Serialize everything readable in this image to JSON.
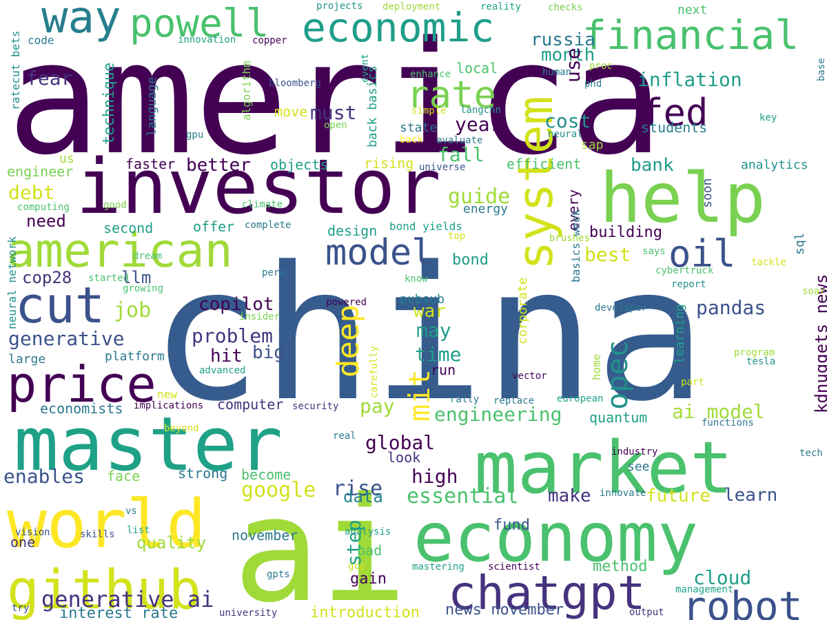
{
  "colors": {
    "background": "#ffffff",
    "dark_purple": "#440154",
    "purple": "#46337e",
    "indigo": "#3b528b",
    "steel_blue": "#365c8d",
    "teal_blue": "#277f8e",
    "teal": "#1fa187",
    "green": "#4ac16d",
    "lime": "#a0da39",
    "yellow": "#fde725"
  },
  "words": [
    {
      "id": "america",
      "text": "america",
      "color": "#440154"
    },
    {
      "id": "china",
      "text": "china",
      "color": "#365c8d"
    },
    {
      "id": "ai",
      "text": "ai",
      "color": "#a0da39"
    },
    {
      "id": "investor",
      "text": "investor",
      "color": "#440154"
    },
    {
      "id": "master",
      "text": "master",
      "color": "#1fa187"
    },
    {
      "id": "market",
      "text": "market",
      "color": "#4ac16d"
    },
    {
      "id": "economy",
      "text": "economy",
      "color": "#4ac16d"
    },
    {
      "id": "world",
      "text": "world",
      "color": "#fde725"
    },
    {
      "id": "help",
      "text": "help",
      "color": "#7ad151"
    },
    {
      "id": "github",
      "text": "github",
      "color": "#d2e21b"
    },
    {
      "id": "american",
      "text": "american",
      "color": "#a0da39"
    },
    {
      "id": "chatgpt",
      "text": "chatgpt",
      "color": "#46337e"
    },
    {
      "id": "price",
      "text": "price",
      "color": "#440154"
    },
    {
      "id": "cut",
      "text": "cut",
      "color": "#3b528b"
    },
    {
      "id": "system",
      "text": "system",
      "color": "#d2e21b"
    },
    {
      "id": "robot",
      "text": "robot",
      "color": "#3b528b"
    },
    {
      "id": "financial",
      "text": "financial",
      "color": "#4ac16d"
    },
    {
      "id": "economic",
      "text": "economic",
      "color": "#1f9e89"
    },
    {
      "id": "way",
      "text": "way",
      "color": "#277f8e"
    },
    {
      "id": "powell",
      "text": "powell",
      "color": "#4ac16d"
    },
    {
      "id": "rate",
      "text": "rate",
      "color": "#7ad151"
    },
    {
      "id": "fed",
      "text": "fed",
      "color": "#440154"
    },
    {
      "id": "model",
      "text": "model",
      "color": "#3b528b"
    },
    {
      "id": "oil",
      "text": "oil",
      "color": "#3b528b"
    },
    {
      "id": "deep",
      "text": "deep",
      "color": "#fde725"
    },
    {
      "id": "mit",
      "text": "mit",
      "color": "#fde725"
    },
    {
      "id": "opec",
      "text": "opec",
      "color": "#21918c"
    },
    {
      "id": "generative-ai",
      "text": "generative ai",
      "color": "#46337e"
    },
    {
      "id": "inflation",
      "text": "inflation",
      "color": "#1f9e89"
    },
    {
      "id": "russia",
      "text": "russia",
      "color": "#2a788e"
    },
    {
      "id": "month",
      "text": "month",
      "color": "#1f9e89"
    },
    {
      "id": "cost",
      "text": "cost",
      "color": "#21918c"
    },
    {
      "id": "use",
      "text": "use",
      "color": "#440154"
    },
    {
      "id": "students",
      "text": "students",
      "color": "#277f8e"
    },
    {
      "id": "year",
      "text": "year",
      "color": "#440154"
    },
    {
      "id": "must",
      "text": "must",
      "color": "#46337e"
    },
    {
      "id": "fear",
      "text": "fear",
      "color": "#46337e"
    },
    {
      "id": "technique",
      "text": "technique",
      "color": "#1fa187"
    },
    {
      "id": "language",
      "text": "language",
      "color": "#2a788e"
    },
    {
      "id": "better",
      "text": "better",
      "color": "#440154"
    },
    {
      "id": "bank",
      "text": "bank",
      "color": "#1f9e89"
    },
    {
      "id": "efficient",
      "text": "efficient",
      "color": "#4ac16d"
    },
    {
      "id": "analytics",
      "text": "analytics",
      "color": "#21918c"
    },
    {
      "id": "debt",
      "text": "debt",
      "color": "#d2e21b"
    },
    {
      "id": "need",
      "text": "need",
      "color": "#440154"
    },
    {
      "id": "cop28",
      "text": "cop28",
      "color": "#46337e"
    },
    {
      "id": "llm",
      "text": "llm",
      "color": "#3b528b"
    },
    {
      "id": "job",
      "text": "job",
      "color": "#a0da39"
    },
    {
      "id": "copilot",
      "text": "copilot",
      "color": "#440154"
    },
    {
      "id": "problem",
      "text": "problem",
      "color": "#46337e"
    },
    {
      "id": "hit",
      "text": "hit",
      "color": "#440154"
    },
    {
      "id": "big",
      "text": "big",
      "color": "#3b528b"
    },
    {
      "id": "generative",
      "text": "generative",
      "color": "#3b528b"
    },
    {
      "id": "large",
      "text": "large",
      "color": "#2a788e"
    },
    {
      "id": "platform",
      "text": "platform",
      "color": "#2a788e"
    },
    {
      "id": "pandas",
      "text": "pandas",
      "color": "#3b528b"
    },
    {
      "id": "kdnuggets-news",
      "text": "kdnuggets news",
      "color": "#440154"
    },
    {
      "id": "best",
      "text": "best",
      "color": "#d2e21b"
    },
    {
      "id": "bond",
      "text": "bond",
      "color": "#1f9e89"
    },
    {
      "id": "guide",
      "text": "guide",
      "color": "#a0da39"
    },
    {
      "id": "energy",
      "text": "energy",
      "color": "#2a788e"
    },
    {
      "id": "fall",
      "text": "fall",
      "color": "#4ac16d"
    },
    {
      "id": "war",
      "text": "war",
      "color": "#d2e21b"
    },
    {
      "id": "may",
      "text": "may",
      "color": "#1f9e89"
    },
    {
      "id": "time",
      "text": "time",
      "color": "#1f9e89"
    },
    {
      "id": "pay",
      "text": "pay",
      "color": "#a0da39"
    },
    {
      "id": "engineering",
      "text": "engineering",
      "color": "#4ac16d"
    },
    {
      "id": "ai-model",
      "text": "ai model",
      "color": "#a0da39"
    },
    {
      "id": "global",
      "text": "global",
      "color": "#440154"
    },
    {
      "id": "rise",
      "text": "rise",
      "color": "#3b528b"
    },
    {
      "id": "high",
      "text": "high",
      "color": "#440154"
    },
    {
      "id": "google",
      "text": "google",
      "color": "#d2e21b"
    },
    {
      "id": "data",
      "text": "data",
      "color": "#277f8e"
    },
    {
      "id": "essential",
      "text": "essential",
      "color": "#4ac16d"
    },
    {
      "id": "make",
      "text": "make",
      "color": "#46337e"
    },
    {
      "id": "future",
      "text": "future",
      "color": "#d2e21b"
    },
    {
      "id": "learn",
      "text": "learn",
      "color": "#3b528b"
    },
    {
      "id": "enables",
      "text": "enables",
      "color": "#3b528b"
    },
    {
      "id": "strong",
      "text": "strong",
      "color": "#2a788e"
    },
    {
      "id": "face",
      "text": "face",
      "color": "#7ad151"
    },
    {
      "id": "become",
      "text": "become",
      "color": "#4ac16d"
    },
    {
      "id": "look",
      "text": "look",
      "color": "#46337e"
    },
    {
      "id": "see",
      "text": "see",
      "color": "#2a788e"
    },
    {
      "id": "quality",
      "text": "quality",
      "color": "#a0da39"
    },
    {
      "id": "november",
      "text": "november",
      "color": "#2a788e"
    },
    {
      "id": "one",
      "text": "one",
      "color": "#46337e"
    },
    {
      "id": "step",
      "text": "step",
      "color": "#1fa187"
    },
    {
      "id": "bad",
      "text": "bad",
      "color": "#4ac16d"
    },
    {
      "id": "gain",
      "text": "gain",
      "color": "#440154"
    },
    {
      "id": "fund",
      "text": "fund",
      "color": "#3b528b"
    },
    {
      "id": "method",
      "text": "method",
      "color": "#4ac16d"
    },
    {
      "id": "cloud",
      "text": "cloud",
      "color": "#1f9e89"
    },
    {
      "id": "news-november",
      "text": "news november",
      "color": "#3b528b"
    },
    {
      "id": "interest-rate",
      "text": "interest rate",
      "color": "#2a788e"
    },
    {
      "id": "introduction",
      "text": "introduction",
      "color": "#d2e21b"
    },
    {
      "id": "economists",
      "text": "economists",
      "color": "#2a788e"
    },
    {
      "id": "computer",
      "text": "computer",
      "color": "#46337e"
    },
    {
      "id": "quantum",
      "text": "quantum",
      "color": "#1f9e89"
    },
    {
      "id": "second",
      "text": "second",
      "color": "#1f9e89"
    },
    {
      "id": "offer",
      "text": "offer",
      "color": "#1f9e89"
    },
    {
      "id": "faster",
      "text": "faster",
      "color": "#440154"
    },
    {
      "id": "objects",
      "text": "objects",
      "color": "#1f9e89"
    },
    {
      "id": "rising",
      "text": "rising",
      "color": "#d2e21b"
    },
    {
      "id": "design",
      "text": "design",
      "color": "#1f9e89"
    },
    {
      "id": "building",
      "text": "building",
      "color": "#440154"
    },
    {
      "id": "every",
      "text": "every",
      "color": "#440154"
    },
    {
      "id": "basics-week",
      "text": "basics week",
      "color": "#2a788e"
    },
    {
      "id": "soon",
      "text": "soon",
      "color": "#3b528b"
    },
    {
      "id": "sql",
      "text": "sql",
      "color": "#2a788e"
    },
    {
      "id": "learning",
      "text": "learning",
      "color": "#1fa187"
    },
    {
      "id": "home",
      "text": "home",
      "color": "#a0da39"
    },
    {
      "id": "corporate",
      "text": "corporate",
      "color": "#d2e21b"
    },
    {
      "id": "pubsub",
      "text": "pubsub",
      "color": "#277f8e"
    },
    {
      "id": "run",
      "text": "run",
      "color": "#440154"
    },
    {
      "id": "next",
      "text": "next",
      "color": "#4ac16d"
    },
    {
      "id": "state",
      "text": "state",
      "color": "#2a788e"
    },
    {
      "id": "local",
      "text": "local",
      "color": "#4ac16d"
    },
    {
      "id": "move",
      "text": "move",
      "color": "#d2e21b"
    },
    {
      "id": "back-basics",
      "text": "back basics",
      "color": "#1f9e89"
    },
    {
      "id": "bond-yields",
      "text": "bond yields",
      "color": "#1f9e89"
    },
    {
      "id": "engineer",
      "text": "engineer",
      "color": "#7ad151"
    },
    {
      "id": "us",
      "text": "us",
      "color": "#a0da39"
    },
    {
      "id": "neural-network",
      "text": "neural network",
      "color": "#21918c"
    },
    {
      "id": "ratecut-bets",
      "text": "ratecut bets",
      "color": "#21918c"
    },
    {
      "id": "code",
      "text": "code",
      "color": "#2a788e"
    },
    {
      "id": "algorithm",
      "text": "algorithm",
      "color": "#7ad151"
    },
    {
      "id": "bloomberg",
      "text": "bloomberg",
      "color": "#3b528b"
    },
    {
      "id": "innovation",
      "text": "innovation",
      "color": "#1fa187"
    },
    {
      "id": "copper",
      "text": "copper",
      "color": "#440154"
    },
    {
      "id": "projects",
      "text": "projects",
      "color": "#21918c"
    },
    {
      "id": "deployment",
      "text": "deployment",
      "color": "#a0da39"
    },
    {
      "id": "reality",
      "text": "reality",
      "color": "#1fa187"
    },
    {
      "id": "checks",
      "text": "checks",
      "color": "#7ad151"
    },
    {
      "id": "base",
      "text": "base",
      "color": "#2a788e"
    },
    {
      "id": "key",
      "text": "key",
      "color": "#1fa187"
    },
    {
      "id": "proc",
      "text": "proc",
      "color": "#a0da39"
    },
    {
      "id": "phd",
      "text": "phd",
      "color": "#2a788e"
    },
    {
      "id": "human",
      "text": "human",
      "color": "#2a788e"
    },
    {
      "id": "neural",
      "text": "neural",
      "color": "#21918c"
    },
    {
      "id": "enhance",
      "text": "enhance",
      "color": "#4ac16d"
    },
    {
      "id": "event",
      "text": "event",
      "color": "#1fa187"
    },
    {
      "id": "simple",
      "text": "simple",
      "color": "#d2e21b"
    },
    {
      "id": "langchn",
      "text": "langchn",
      "color": "#21918c"
    },
    {
      "id": "open",
      "text": "open",
      "color": "#7ad151"
    },
    {
      "id": "gpu",
      "text": "gpu",
      "color": "#277f8e"
    },
    {
      "id": "back",
      "text": "back",
      "color": "#fde725"
    },
    {
      "id": "evaluate",
      "text": "evaluate",
      "color": "#2a788e"
    },
    {
      "id": "universe",
      "text": "universe",
      "color": "#3b528b"
    },
    {
      "id": "sap",
      "text": "sap",
      "color": "#a0da39"
    },
    {
      "id": "computing",
      "text": "computing",
      "color": "#4ac16d"
    },
    {
      "id": "good",
      "text": "good",
      "color": "#7ad151"
    },
    {
      "id": "climate",
      "text": "climate",
      "color": "#4ac16d"
    },
    {
      "id": "complete",
      "text": "complete",
      "color": "#2a788e"
    },
    {
      "id": "top",
      "text": "top",
      "color": "#d2e21b"
    },
    {
      "id": "brushes",
      "text": "brushes",
      "color": "#a0da39"
    },
    {
      "id": "says",
      "text": "says",
      "color": "#4ac16d"
    },
    {
      "id": "dream",
      "text": "dream",
      "color": "#4ac16d"
    },
    {
      "id": "started",
      "text": "started",
      "color": "#4ac16d"
    },
    {
      "id": "growing",
      "text": "growing",
      "color": "#4ac16d"
    },
    {
      "id": "peru",
      "text": "peru",
      "color": "#2a788e"
    },
    {
      "id": "know",
      "text": "know",
      "color": "#4ac16d"
    },
    {
      "id": "cybertruck",
      "text": "cybertruck",
      "color": "#4ac16d"
    },
    {
      "id": "tackle",
      "text": "tackle",
      "color": "#d2e21b"
    },
    {
      "id": "report",
      "text": "report",
      "color": "#21918c"
    },
    {
      "id": "powered",
      "text": "powered",
      "color": "#440154"
    },
    {
      "id": "insider",
      "text": "insider",
      "color": "#7ad151"
    },
    {
      "id": "developer",
      "text": "developer",
      "color": "#2a788e"
    },
    {
      "id": "soar",
      "text": "soar",
      "color": "#a0da39"
    },
    {
      "id": "advanced",
      "text": "advanced",
      "color": "#1fa187"
    },
    {
      "id": "carefully",
      "text": "carefully",
      "color": "#d2e21b"
    },
    {
      "id": "vector",
      "text": "vector",
      "color": "#440154"
    },
    {
      "id": "program",
      "text": "program",
      "color": "#a0da39"
    },
    {
      "id": "tesla",
      "text": "tesla",
      "color": "#21918c"
    },
    {
      "id": "part",
      "text": "part",
      "color": "#d2e21b"
    },
    {
      "id": "new",
      "text": "new",
      "color": "#d2e21b"
    },
    {
      "id": "implications",
      "text": "implications",
      "color": "#440154"
    },
    {
      "id": "security",
      "text": "security",
      "color": "#46337e"
    },
    {
      "id": "rally",
      "text": "rally",
      "color": "#2a788e"
    },
    {
      "id": "replace",
      "text": "replace",
      "color": "#2a788e"
    },
    {
      "id": "european",
      "text": "european",
      "color": "#1fa187"
    },
    {
      "id": "functions",
      "text": "functions",
      "color": "#2a788e"
    },
    {
      "id": "beyond",
      "text": "beyond",
      "color": "#d2e21b"
    },
    {
      "id": "real",
      "text": "real",
      "color": "#2a788e"
    },
    {
      "id": "industry",
      "text": "industry",
      "color": "#440154"
    },
    {
      "id": "tech",
      "text": "tech",
      "color": "#2a788e"
    },
    {
      "id": "innovate",
      "text": "innovate",
      "color": "#2a788e"
    },
    {
      "id": "vs",
      "text": "vs",
      "color": "#2a788e"
    },
    {
      "id": "vision",
      "text": "vision",
      "color": "#3b528b"
    },
    {
      "id": "skills",
      "text": "skills",
      "color": "#3b528b"
    },
    {
      "id": "list",
      "text": "list",
      "color": "#1fa187"
    },
    {
      "id": "analysis",
      "text": "analysis",
      "color": "#1fa187"
    },
    {
      "id": "gcp",
      "text": "gcp",
      "color": "#d2e21b"
    },
    {
      "id": "mastering",
      "text": "mastering",
      "color": "#1fa187"
    },
    {
      "id": "scientist",
      "text": "scientist",
      "color": "#440154"
    },
    {
      "id": "gpts",
      "text": "gpts",
      "color": "#2a788e"
    },
    {
      "id": "management",
      "text": "management",
      "color": "#1fa187"
    },
    {
      "id": "try",
      "text": "try",
      "color": "#3b528b"
    },
    {
      "id": "university",
      "text": "university",
      "color": "#46337e"
    },
    {
      "id": "output",
      "text": "output",
      "color": "#46337e"
    }
  ]
}
